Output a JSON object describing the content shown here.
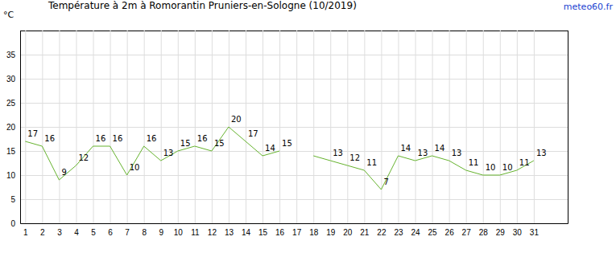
{
  "chart_data": {
    "type": "line",
    "title": "Température à 2m à Romorantin Pruniers-en-Sologne (10/2019)",
    "y_label": "°C",
    "annotations": [
      "meteo60.fr"
    ],
    "x": [
      1,
      2,
      3,
      4,
      5,
      6,
      7,
      8,
      9,
      10,
      11,
      12,
      13,
      14,
      15,
      16,
      17,
      18,
      19,
      20,
      21,
      22,
      23,
      24,
      25,
      26,
      27,
      28,
      29,
      30,
      31
    ],
    "values": [
      17,
      16,
      9,
      12,
      16,
      16,
      10,
      16,
      13,
      15,
      16,
      15,
      20,
      17,
      14,
      15,
      null,
      14,
      13,
      12,
      11,
      7,
      14,
      13,
      14,
      13,
      11,
      10,
      10,
      11,
      13
    ],
    "value_labels": [
      "17",
      "16",
      "9",
      "12",
      "16",
      "16",
      "10",
      "16",
      "13",
      "15",
      "16",
      "15",
      "20",
      "17",
      "14",
      "15",
      null,
      null,
      "13",
      "12",
      "11",
      "7",
      "14",
      "13",
      "14",
      "13",
      "11",
      "10",
      "10",
      "11",
      "13"
    ],
    "color": "#66b32e",
    "xlim": [
      0.7,
      33
    ],
    "xticks": [
      1,
      2,
      3,
      4,
      5,
      6,
      7,
      8,
      9,
      10,
      11,
      12,
      13,
      14,
      15,
      16,
      17,
      18,
      19,
      20,
      21,
      22,
      23,
      24,
      25,
      26,
      27,
      28,
      29,
      30,
      31
    ],
    "ylim": [
      0,
      40
    ],
    "yticks": [
      0,
      5,
      10,
      15,
      20,
      25,
      30,
      35
    ],
    "grid": true,
    "data_labels": true
  }
}
